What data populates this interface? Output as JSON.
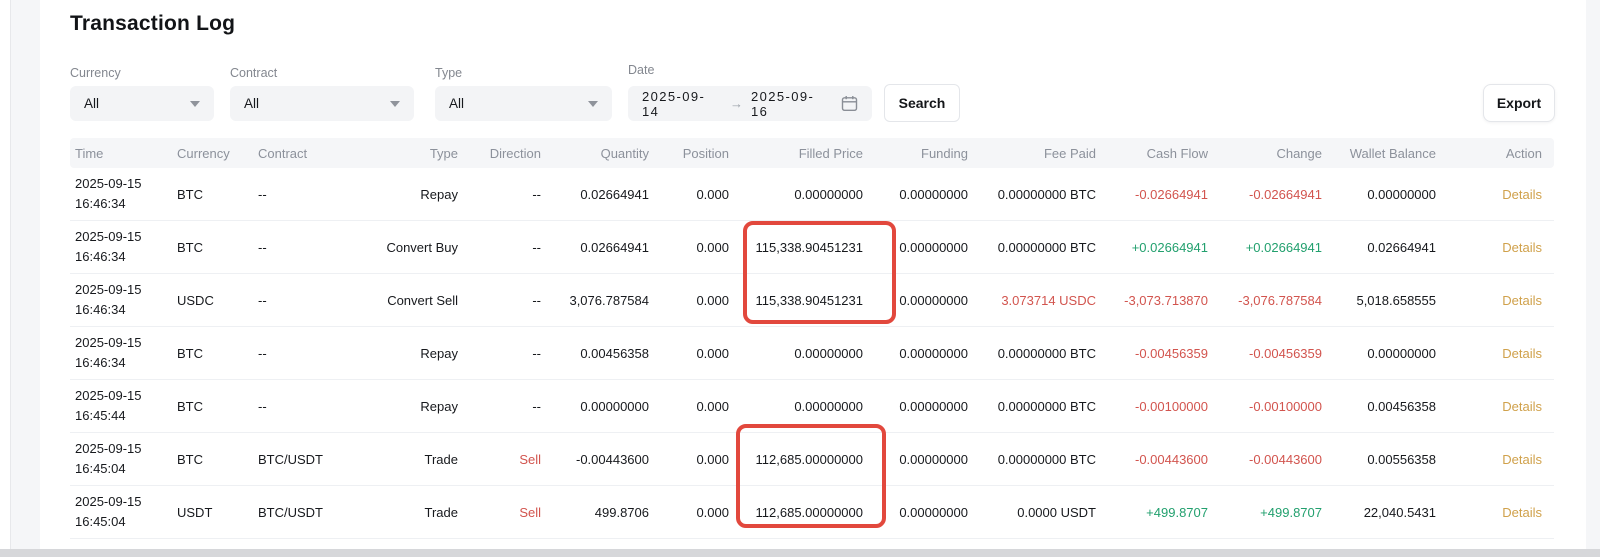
{
  "title": "Transaction Log",
  "filters": {
    "currency_label": "Currency",
    "currency_value": "All",
    "contract_label": "Contract",
    "contract_value": "All",
    "type_label": "Type",
    "type_value": "All",
    "date_label": "Date",
    "date_start": "2025-09-14",
    "date_end": "2025-09-16",
    "date_arrow": "→",
    "search_label": "Search",
    "export_label": "Export"
  },
  "colors": {
    "negative": "#d2544e",
    "positive": "#22a06e",
    "details_link": "#d0a14b",
    "highlight_box": "#e2483d",
    "header_text": "#8c919b"
  },
  "table": {
    "columns": [
      {
        "key": "time",
        "label": "Time",
        "align": "left"
      },
      {
        "key": "currency",
        "label": "Currency",
        "align": "left"
      },
      {
        "key": "contract",
        "label": "Contract",
        "align": "left"
      },
      {
        "key": "type",
        "label": "Type",
        "align": "right"
      },
      {
        "key": "direction",
        "label": "Direction",
        "align": "right"
      },
      {
        "key": "quantity",
        "label": "Quantity",
        "align": "right"
      },
      {
        "key": "position",
        "label": "Position",
        "align": "right"
      },
      {
        "key": "filled_price",
        "label": "Filled Price",
        "align": "right"
      },
      {
        "key": "funding",
        "label": "Funding",
        "align": "right",
        "has_hint": true
      },
      {
        "key": "fee_paid",
        "label": "Fee Paid",
        "align": "right"
      },
      {
        "key": "cash_flow",
        "label": "Cash Flow",
        "align": "right"
      },
      {
        "key": "change",
        "label": "Change",
        "align": "right",
        "has_hint": true
      },
      {
        "key": "wallet_balance",
        "label": "Wallet Balance",
        "align": "right"
      },
      {
        "key": "action",
        "label": "Action",
        "align": "right"
      }
    ],
    "rows": [
      {
        "time_date": "2025-09-15",
        "time_clock": "16:46:34",
        "currency": "BTC",
        "contract": "--",
        "type": "Repay",
        "direction": "--",
        "quantity": "0.02664941",
        "position": "0.000",
        "filled_price": "0.00000000",
        "funding": "0.00000000",
        "fee_paid": "0.00000000 BTC",
        "cash_flow": "-0.02664941",
        "cash_flow_tone": "neg",
        "change": "-0.02664941",
        "change_tone": "neg",
        "wallet_balance": "0.00000000",
        "action": "Details"
      },
      {
        "time_date": "2025-09-15",
        "time_clock": "16:46:34",
        "currency": "BTC",
        "contract": "--",
        "type": "Convert Buy",
        "direction": "--",
        "quantity": "0.02664941",
        "position": "0.000",
        "filled_price": "115,338.90451231",
        "funding": "0.00000000",
        "fee_paid": "0.00000000 BTC",
        "cash_flow": "+0.02664941",
        "cash_flow_tone": "pos",
        "change": "+0.02664941",
        "change_tone": "pos",
        "wallet_balance": "0.02664941",
        "action": "Details"
      },
      {
        "time_date": "2025-09-15",
        "time_clock": "16:46:34",
        "currency": "USDC",
        "contract": "--",
        "type": "Convert Sell",
        "direction": "--",
        "quantity": "3,076.787584",
        "position": "0.000",
        "filled_price": "115,338.90451231",
        "funding": "0.00000000",
        "fee_paid": "3.073714 USDC",
        "fee_paid_tone": "neg",
        "cash_flow": "-3,073.713870",
        "cash_flow_tone": "neg",
        "change": "-3,076.787584",
        "change_tone": "neg",
        "wallet_balance": "5,018.658555",
        "action": "Details"
      },
      {
        "time_date": "2025-09-15",
        "time_clock": "16:46:34",
        "currency": "BTC",
        "contract": "--",
        "type": "Repay",
        "direction": "--",
        "quantity": "0.00456358",
        "position": "0.000",
        "filled_price": "0.00000000",
        "funding": "0.00000000",
        "fee_paid": "0.00000000 BTC",
        "cash_flow": "-0.00456359",
        "cash_flow_tone": "neg",
        "change": "-0.00456359",
        "change_tone": "neg",
        "wallet_balance": "0.00000000",
        "action": "Details"
      },
      {
        "time_date": "2025-09-15",
        "time_clock": "16:45:44",
        "currency": "BTC",
        "contract": "--",
        "type": "Repay",
        "direction": "--",
        "quantity": "0.00000000",
        "position": "0.000",
        "filled_price": "0.00000000",
        "funding": "0.00000000",
        "fee_paid": "0.00000000 BTC",
        "cash_flow": "-0.00100000",
        "cash_flow_tone": "neg",
        "change": "-0.00100000",
        "change_tone": "neg",
        "wallet_balance": "0.00456358",
        "action": "Details"
      },
      {
        "time_date": "2025-09-15",
        "time_clock": "16:45:04",
        "currency": "BTC",
        "contract": "BTC/USDT",
        "type": "Trade",
        "direction": "Sell",
        "direction_tone": "neg",
        "quantity": "-0.00443600",
        "position": "0.000",
        "filled_price": "112,685.00000000",
        "funding": "0.00000000",
        "fee_paid": "0.00000000 BTC",
        "cash_flow": "-0.00443600",
        "cash_flow_tone": "neg",
        "change": "-0.00443600",
        "change_tone": "neg",
        "wallet_balance": "0.00556358",
        "action": "Details"
      },
      {
        "time_date": "2025-09-15",
        "time_clock": "16:45:04",
        "currency": "USDT",
        "contract": "BTC/USDT",
        "type": "Trade",
        "direction": "Sell",
        "direction_tone": "neg",
        "quantity": "499.8706",
        "position": "0.000",
        "filled_price": "112,685.00000000",
        "funding": "0.00000000",
        "fee_paid": "0.0000 USDT",
        "cash_flow": "+499.8707",
        "cash_flow_tone": "pos",
        "change": "+499.8707",
        "change_tone": "pos",
        "wallet_balance": "22,040.5431",
        "action": "Details"
      }
    ]
  }
}
